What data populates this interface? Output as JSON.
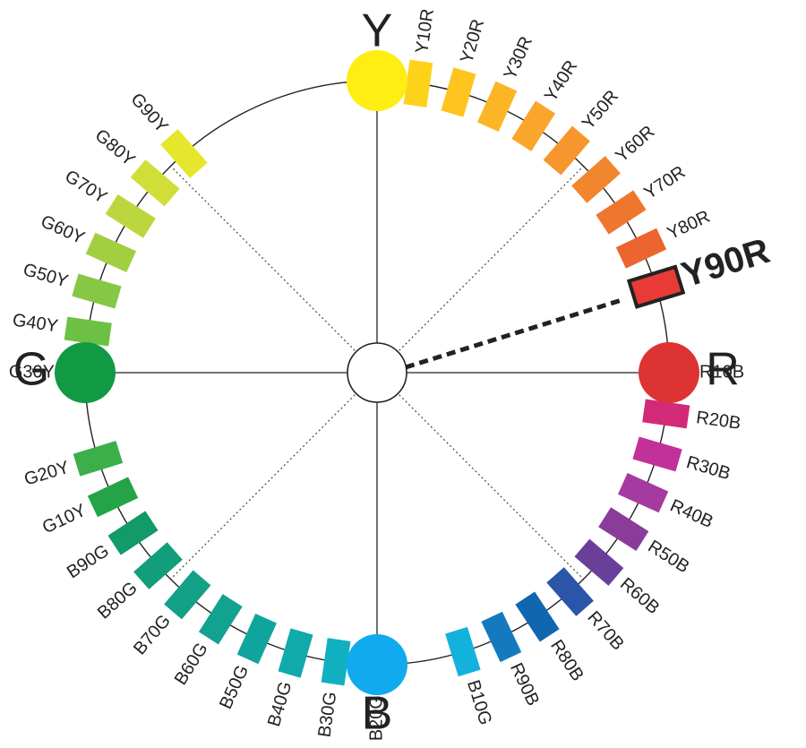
{
  "wheel": {
    "center_label": "",
    "highlight": {
      "hue": "Y90R",
      "label": "Y90R"
    },
    "primaries": [
      {
        "key": "Y",
        "label": "Y",
        "color": "#ffee11"
      },
      {
        "key": "R",
        "label": "R",
        "color": "#dd3333"
      },
      {
        "key": "B",
        "label": "B",
        "color": "#11aaee"
      },
      {
        "key": "G",
        "label": "G",
        "color": "#119944"
      }
    ],
    "hues": [
      {
        "label": "Y10R",
        "color": "#ffd21a"
      },
      {
        "label": "Y20R",
        "color": "#ffc41f"
      },
      {
        "label": "Y30R",
        "color": "#fcb524"
      },
      {
        "label": "Y40R",
        "color": "#f9a62a"
      },
      {
        "label": "Y50R",
        "color": "#f6962c"
      },
      {
        "label": "Y60R",
        "color": "#f2862e"
      },
      {
        "label": "Y70R",
        "color": "#ef762f"
      },
      {
        "label": "Y80R",
        "color": "#ec6430"
      },
      {
        "label": "Y90R",
        "color": "#e83a36"
      },
      {
        "label": "R10B",
        "color": "#d92c55"
      },
      {
        "label": "R20B",
        "color": "#d22a78"
      },
      {
        "label": "R30B",
        "color": "#c2309a"
      },
      {
        "label": "R40B",
        "color": "#a53aa0"
      },
      {
        "label": "R50B",
        "color": "#8a3c9a"
      },
      {
        "label": "R60B",
        "color": "#6a3f9a"
      },
      {
        "label": "R70B",
        "color": "#2a55a8"
      },
      {
        "label": "R80B",
        "color": "#1166b0"
      },
      {
        "label": "R90B",
        "color": "#1479bf"
      },
      {
        "label": "B10G",
        "color": "#12b2dd"
      },
      {
        "label": "B20G",
        "color": "#12b5d0"
      },
      {
        "label": "B30G",
        "color": "#10b0c0"
      },
      {
        "label": "B40G",
        "color": "#10aaaa"
      },
      {
        "label": "B50G",
        "color": "#10a59c"
      },
      {
        "label": "B60G",
        "color": "#11a290"
      },
      {
        "label": "B70G",
        "color": "#12a086"
      },
      {
        "label": "B80G",
        "color": "#129e7a"
      },
      {
        "label": "B90G",
        "color": "#129a68"
      },
      {
        "label": "G10Y",
        "color": "#25a447"
      },
      {
        "label": "G20Y",
        "color": "#3caf48"
      },
      {
        "label": "G30Y",
        "color": "#55b848"
      },
      {
        "label": "G40Y",
        "color": "#6ec045"
      },
      {
        "label": "G50Y",
        "color": "#86c744"
      },
      {
        "label": "G60Y",
        "color": "#a2cf42"
      },
      {
        "label": "G70Y",
        "color": "#bcd73e"
      },
      {
        "label": "G80Y",
        "color": "#d0de38"
      },
      {
        "label": "G90Y",
        "color": "#e6e62c"
      }
    ]
  }
}
